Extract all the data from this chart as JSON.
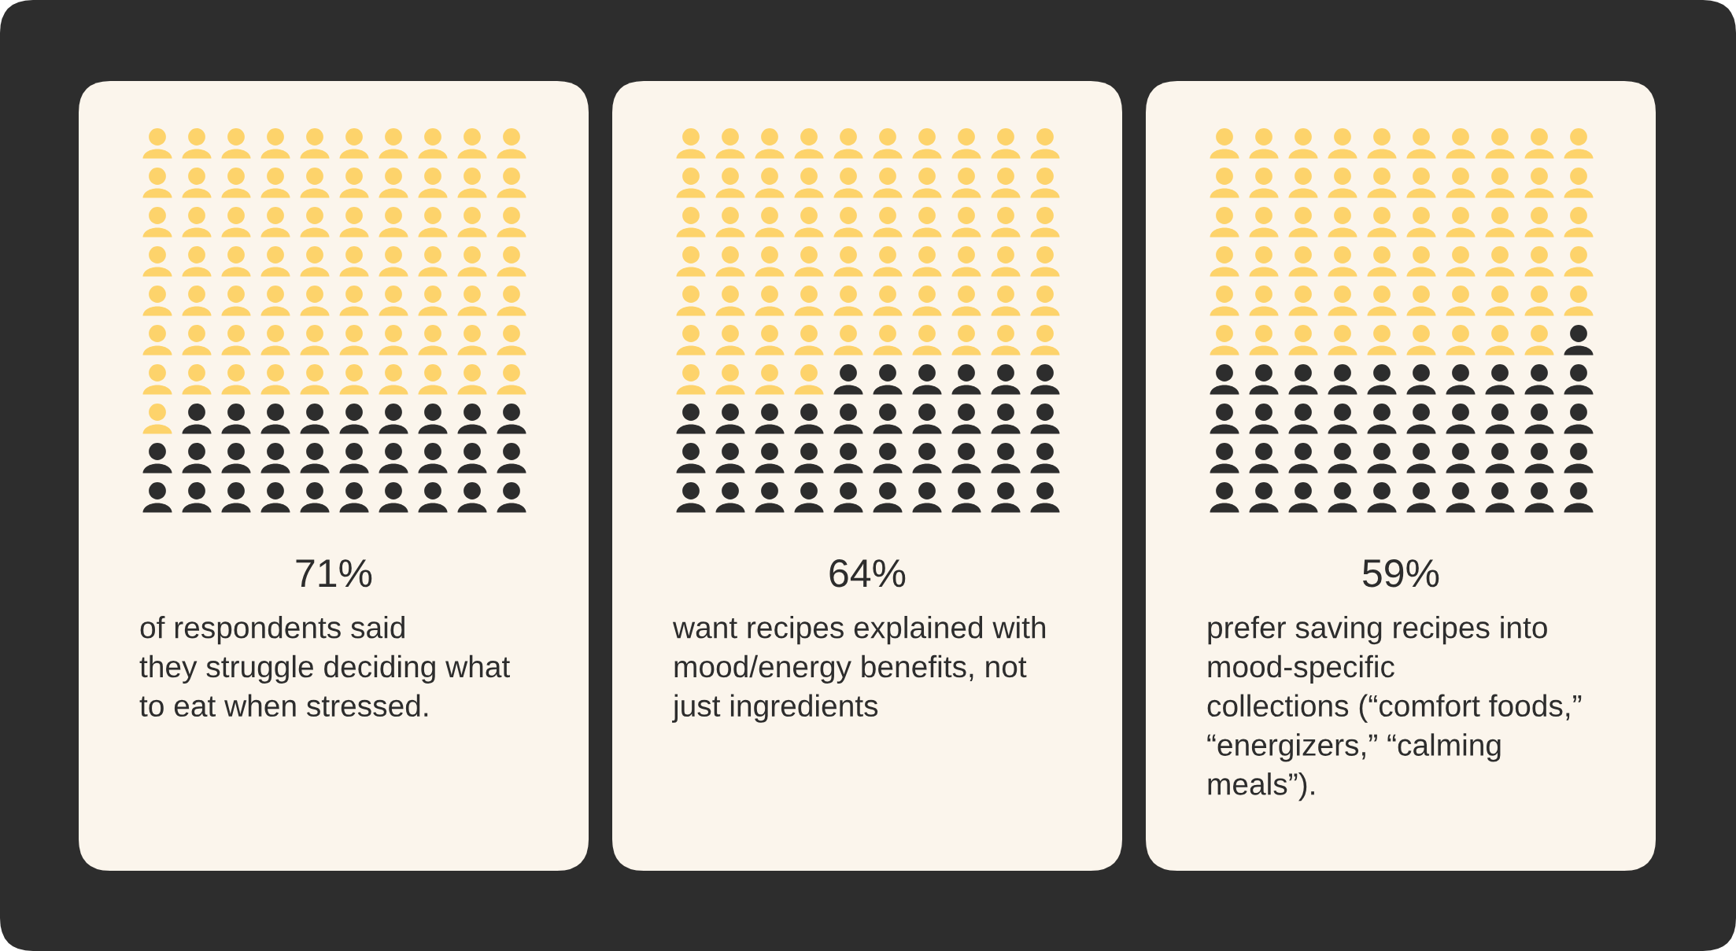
{
  "chart_data": [
    {
      "type": "other",
      "values": [
        71
      ],
      "value_labels": [
        "71%"
      ],
      "annotations": [
        "of respondents said\nthey struggle deciding what\nto eat when stressed."
      ]
    },
    {
      "type": "other",
      "values": [
        64
      ],
      "value_labels": [
        "64%"
      ],
      "annotations": [
        "want recipes explained with\nmood/energy benefits, not\njust ingredients"
      ]
    },
    {
      "type": "other",
      "values": [
        59
      ],
      "value_labels": [
        "59%"
      ],
      "annotations": [
        "prefer saving recipes into\nmood-specific\ncollections (“comfort foods,”\n“energizers,” “calming\nmeals”)."
      ]
    }
  ]
}
